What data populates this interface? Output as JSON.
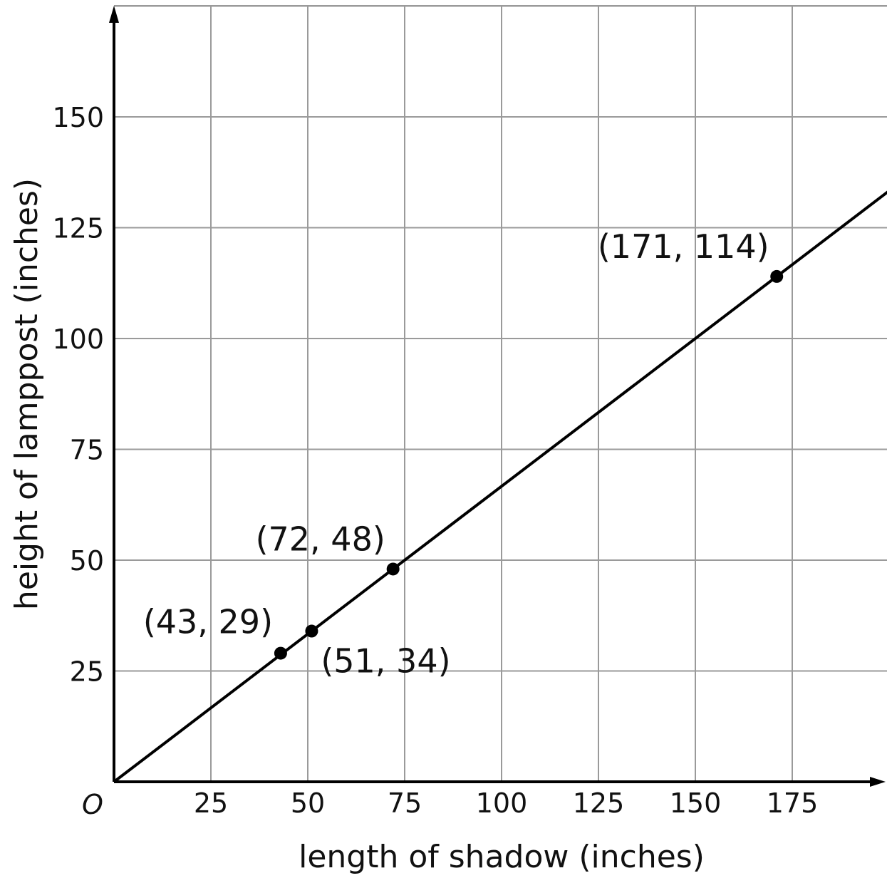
{
  "chart_data": {
    "type": "line",
    "xlabel": "length of shadow (inches)",
    "ylabel": "height of lamppost (inches)",
    "origin_label": "O",
    "xlim": [
      0,
      200
    ],
    "ylim": [
      0,
      175
    ],
    "xticks": [
      25,
      50,
      75,
      100,
      125,
      150,
      175
    ],
    "yticks": [
      25,
      50,
      75,
      100,
      125,
      150
    ],
    "grid": true,
    "series": [
      {
        "x": [
          0,
          200
        ],
        "y": [
          0,
          133.33
        ]
      }
    ],
    "points": [
      {
        "x": 43,
        "y": 29,
        "label": "(43, 29)"
      },
      {
        "x": 51,
        "y": 34,
        "label": "(51, 34)"
      },
      {
        "x": 72,
        "y": 48,
        "label": "(72, 48)"
      },
      {
        "x": 171,
        "y": 114,
        "label": "(171, 114)"
      }
    ]
  }
}
